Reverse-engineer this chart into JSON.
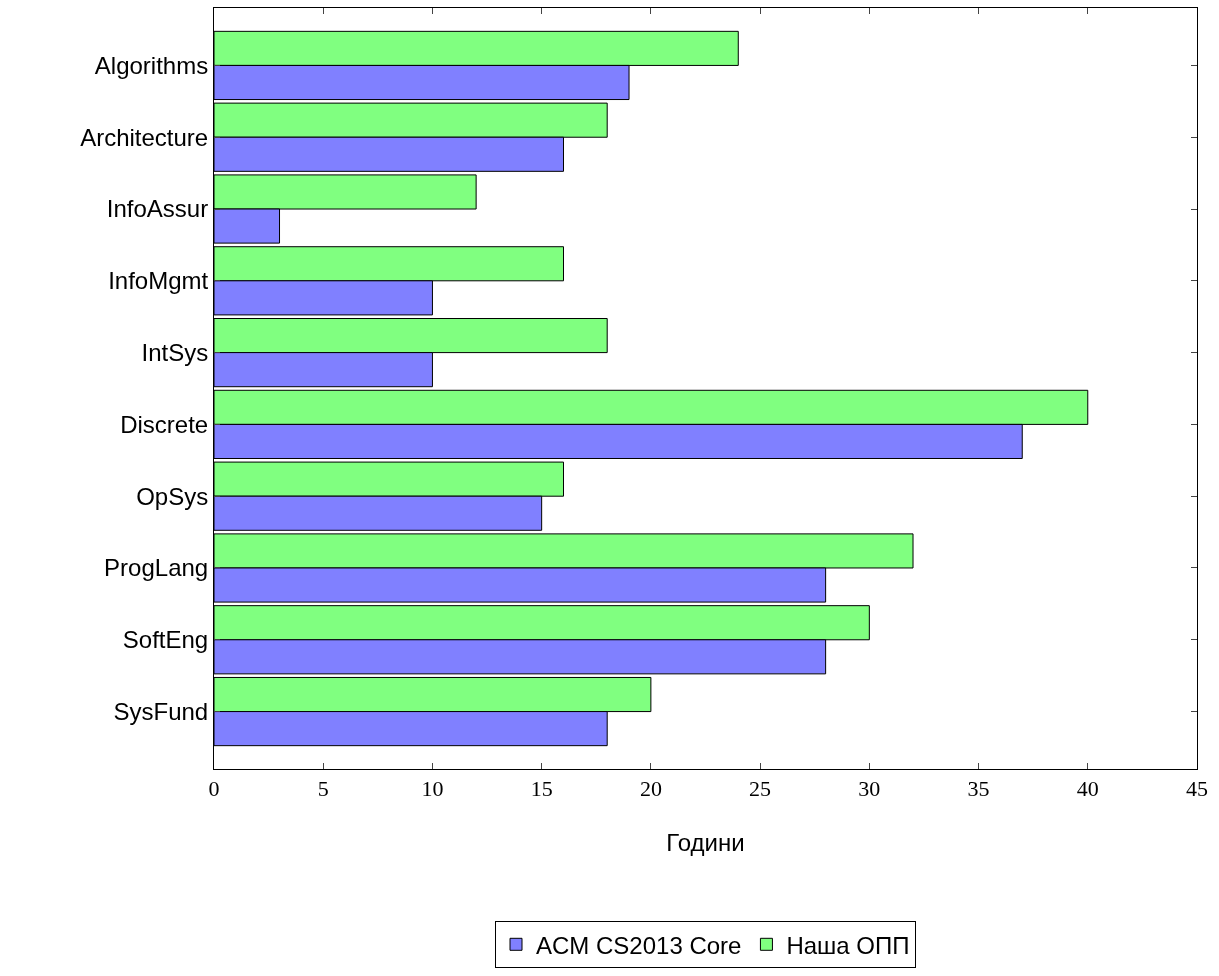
{
  "chart_data": {
    "type": "bar",
    "orientation": "horizontal",
    "xlabel": "Години",
    "categories": [
      "Algorithms",
      "Architecture",
      "InfoAssur",
      "InfoMgmt",
      "IntSys",
      "Discrete",
      "OpSys",
      "ProgLang",
      "SoftEng",
      "SysFund"
    ],
    "series": [
      {
        "name": "ACM CS2013 Core",
        "color": "#8080ff",
        "values": [
          19,
          16,
          3,
          10,
          10,
          37,
          15,
          28,
          28,
          18
        ]
      },
      {
        "name": "Наша ОПП",
        "color": "#80ff80",
        "values": [
          24,
          18,
          12,
          16,
          18,
          40,
          16,
          32,
          30,
          20
        ]
      }
    ],
    "xlim": [
      0,
      45
    ],
    "xticks": [
      0,
      5,
      10,
      15,
      20,
      25,
      30,
      35,
      40,
      45
    ],
    "grid": false,
    "legend": "bottom"
  }
}
